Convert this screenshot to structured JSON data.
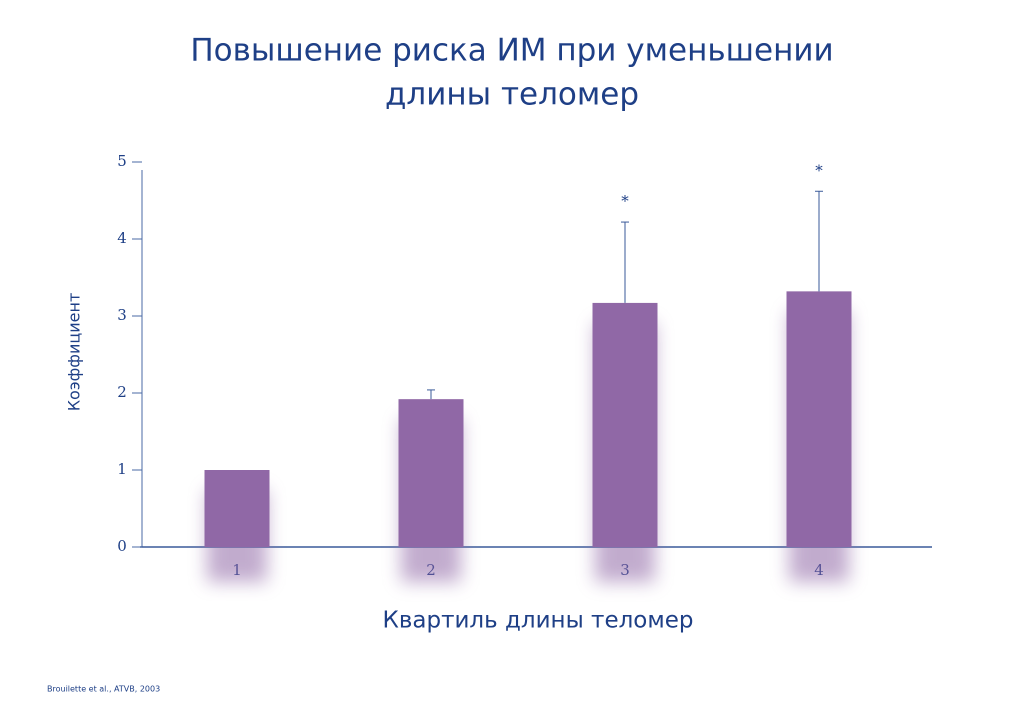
{
  "chart_data": {
    "type": "bar",
    "title": [
      "Повышение риска ИМ при уменьшении",
      "длины теломер"
    ],
    "x_label": "Квартиль длины теломер",
    "y_label": "Коэффициент",
    "categories": [
      "1",
      "2",
      "3",
      "4"
    ],
    "values": [
      1.0,
      1.92,
      3.17,
      3.32
    ],
    "errors": [
      null,
      0.12,
      1.05,
      1.3
    ],
    "annotations": [
      null,
      null,
      "*",
      "*"
    ],
    "color": "#9068a6",
    "ylim": [
      0,
      5
    ],
    "yticks": [
      0,
      1,
      2,
      3,
      4,
      5
    ],
    "source": "Brouilette et al., ATVB, 2003"
  }
}
